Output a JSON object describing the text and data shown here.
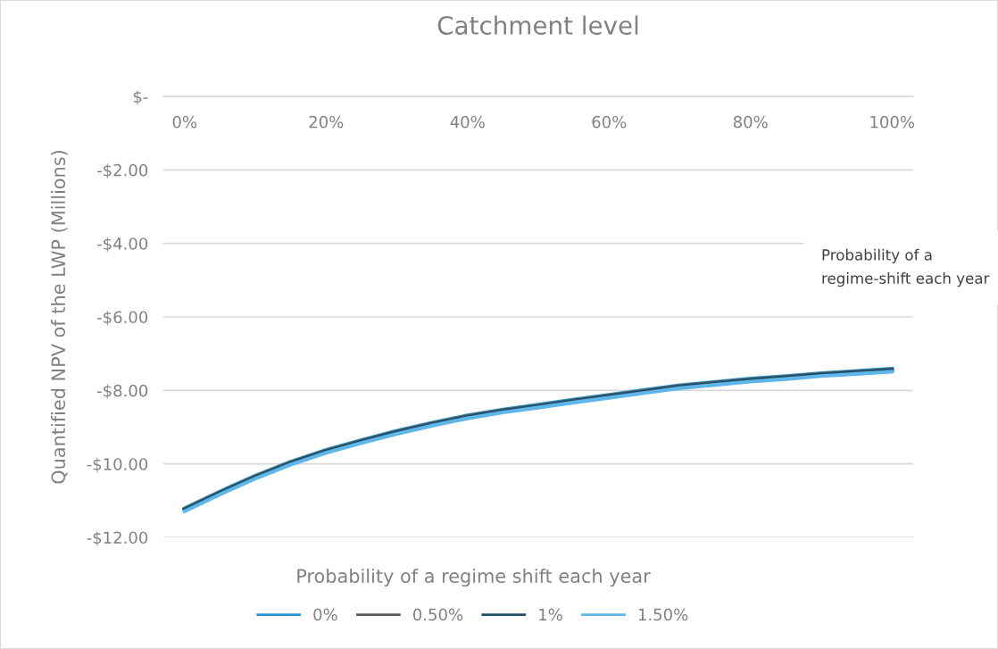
{
  "chart_data": {
    "type": "line",
    "title": "Catchment level",
    "xlabel": "Probability of a regime shift each year",
    "ylabel": "Quantified NPV of the LWP (Millions)",
    "x": [
      0,
      5,
      10,
      15,
      20,
      25,
      30,
      35,
      40,
      45,
      50,
      55,
      60,
      65,
      70,
      75,
      80,
      85,
      90,
      95,
      100
    ],
    "series": [
      {
        "name": "0%",
        "color": "#1f9ad6",
        "values": [
          -11.21,
          -10.75,
          -10.32,
          -9.94,
          -9.62,
          -9.35,
          -9.1,
          -8.88,
          -8.68,
          -8.52,
          -8.39,
          -8.25,
          -8.12,
          -7.99,
          -7.86,
          -7.77,
          -7.68,
          -7.61,
          -7.53,
          -7.47,
          -7.41
        ]
      },
      {
        "name": "0.50%",
        "color": "#595959",
        "values": [
          -11.23,
          -10.77,
          -10.34,
          -9.96,
          -9.64,
          -9.37,
          -9.12,
          -8.9,
          -8.7,
          -8.54,
          -8.41,
          -8.27,
          -8.14,
          -8.01,
          -7.88,
          -7.79,
          -7.7,
          -7.63,
          -7.55,
          -7.49,
          -7.43
        ]
      },
      {
        "name": "1%",
        "color": "#1f4e6b",
        "values": [
          -11.25,
          -10.79,
          -10.36,
          -9.98,
          -9.66,
          -9.39,
          -9.14,
          -8.92,
          -8.72,
          -8.56,
          -8.43,
          -8.29,
          -8.16,
          -8.03,
          -7.9,
          -7.81,
          -7.72,
          -7.65,
          -7.57,
          -7.51,
          -7.45
        ]
      },
      {
        "name": "1.50%",
        "color": "#5fb6e8",
        "values": [
          -11.29,
          -10.83,
          -10.4,
          -10.02,
          -9.7,
          -9.43,
          -9.18,
          -8.96,
          -8.76,
          -8.6,
          -8.47,
          -8.33,
          -8.2,
          -8.07,
          -7.94,
          -7.85,
          -7.76,
          -7.69,
          -7.61,
          -7.55,
          -7.49
        ]
      }
    ],
    "xlim": [
      -3,
      103
    ],
    "xticks": [
      {
        "value": 0,
        "label": "0%"
      },
      {
        "value": 20,
        "label": "20%"
      },
      {
        "value": 40,
        "label": "40%"
      },
      {
        "value": 60,
        "label": "60%"
      },
      {
        "value": 80,
        "label": "80%"
      },
      {
        "value": 100,
        "label": "100%"
      }
    ],
    "ylim": [
      -12,
      0
    ],
    "yticks": [
      {
        "value": -12,
        "label": "-$12.00"
      },
      {
        "value": -10,
        "label": "-$10.00"
      },
      {
        "value": -8,
        "label": "-$8.00"
      },
      {
        "value": -6,
        "label": "-$6.00"
      },
      {
        "value": -4,
        "label": "-$4.00"
      },
      {
        "value": -2,
        "label": "-$2.00"
      },
      {
        "value": 0,
        "label": "$-"
      }
    ],
    "grid": "y",
    "legend": "bottom",
    "marker": "none",
    "line_style": "solid",
    "annotations": [
      "Probability of a\nregime-shift each year"
    ]
  }
}
